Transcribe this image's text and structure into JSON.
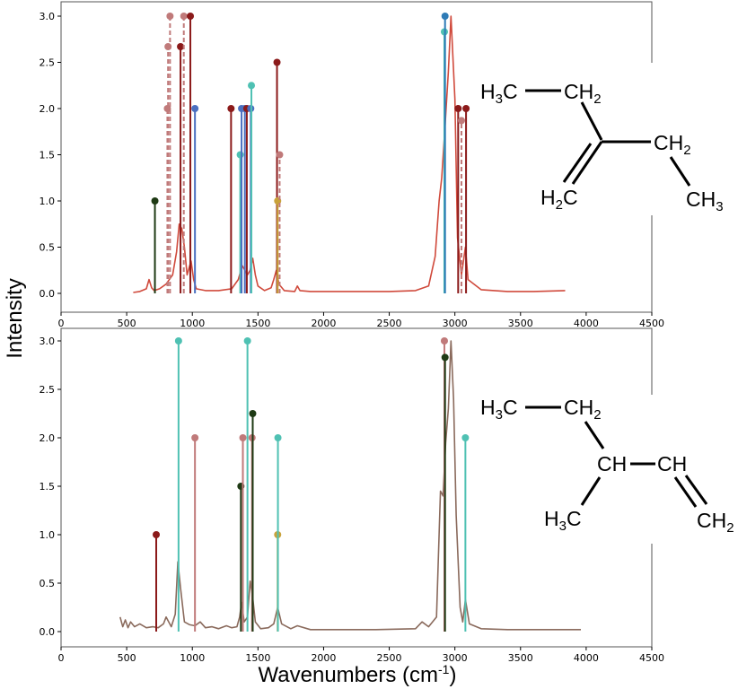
{
  "colors": {
    "spectrum_top": "#d04a3c",
    "spectrum_bottom": "#8a6a5c",
    "dark_red": "#8b1a1a",
    "pink": "#c07a7a",
    "blue": "#4a6fc0",
    "teal": "#4fc1b3",
    "dark_green": "#1e3a14",
    "gold": "#c9a23a",
    "steel_blue": "#2e7bb6"
  },
  "axes": {
    "ylabel": "Intensity",
    "xlabel_main": "Wavenumbers (cm",
    "xlabel_sup": "-1",
    "xlabel_close": ")"
  },
  "structures": {
    "top": {
      "h3c": "H3C",
      "ch2_a": "CH2",
      "ch2_b": "CH2",
      "h2c": "H2C",
      "ch3": "CH3"
    },
    "bottom": {
      "h3c": "H3C",
      "ch2": "CH2",
      "ch_a": "CH",
      "ch_b": "CH",
      "h3c_b": "H3C",
      "ch2_end": "CH2"
    }
  },
  "chart_data": [
    {
      "type": "line",
      "panel": "top",
      "xlim": [
        0,
        4500
      ],
      "ylim": [
        0,
        3.1
      ],
      "xticks": [
        0,
        500,
        1000,
        1500,
        2000,
        2500,
        3000,
        3500,
        4000,
        4500
      ],
      "yticks": [
        0.0,
        0.5,
        1.0,
        1.5,
        2.0,
        2.5,
        3.0
      ],
      "series": [
        {
          "color_key": "spectrum_top",
          "x": [
            550,
            600,
            650,
            670,
            690,
            710,
            750,
            800,
            850,
            880,
            900,
            920,
            940,
            960,
            990,
            1010,
            1030,
            1100,
            1200,
            1300,
            1350,
            1380,
            1420,
            1440,
            1460,
            1480,
            1500,
            1550,
            1600,
            1620,
            1640,
            1660,
            1700,
            1780,
            1800,
            1820,
            1900,
            2100,
            2300,
            2500,
            2700,
            2800,
            2850,
            2880,
            2900,
            2920,
            2950,
            2970,
            3000,
            3020,
            3050,
            3080,
            3100,
            3200,
            3400,
            3600,
            3840
          ],
          "y": [
            0.01,
            0.02,
            0.05,
            0.15,
            0.06,
            0.03,
            0.05,
            0.1,
            0.2,
            0.45,
            0.75,
            0.7,
            0.5,
            0.2,
            0.35,
            0.15,
            0.05,
            0.03,
            0.03,
            0.05,
            0.15,
            0.3,
            0.2,
            0.25,
            0.38,
            0.2,
            0.08,
            0.03,
            0.06,
            0.15,
            0.25,
            0.1,
            0.03,
            0.02,
            0.08,
            0.03,
            0.02,
            0.02,
            0.02,
            0.02,
            0.03,
            0.08,
            0.4,
            1.0,
            1.25,
            1.7,
            2.4,
            3.0,
            2.1,
            0.6,
            0.2,
            0.5,
            0.15,
            0.04,
            0.02,
            0.02,
            0.03
          ]
        }
      ],
      "sticks": [
        {
          "x": 715,
          "y": 1.0,
          "color_key": "dark_green",
          "dashed": false
        },
        {
          "x": 810,
          "y": 2.0,
          "color_key": "pink",
          "dashed": true
        },
        {
          "x": 815,
          "y": 2.67,
          "color_key": "pink",
          "dashed": true
        },
        {
          "x": 830,
          "y": 3.0,
          "color_key": "pink",
          "dashed": true
        },
        {
          "x": 910,
          "y": 2.67,
          "color_key": "dark_red",
          "dashed": false
        },
        {
          "x": 935,
          "y": 3.0,
          "color_key": "pink",
          "dashed": true
        },
        {
          "x": 985,
          "y": 3.0,
          "color_key": "dark_red",
          "dashed": false
        },
        {
          "x": 1020,
          "y": 2.0,
          "color_key": "blue",
          "dashed": false
        },
        {
          "x": 1295,
          "y": 2.0,
          "color_key": "dark_red",
          "dashed": false
        },
        {
          "x": 1365,
          "y": 1.5,
          "color_key": "teal",
          "dashed": false
        },
        {
          "x": 1375,
          "y": 2.0,
          "color_key": "blue",
          "dashed": false
        },
        {
          "x": 1400,
          "y": 2.0,
          "color_key": "blue",
          "dashed": false
        },
        {
          "x": 1415,
          "y": 2.0,
          "color_key": "dark_red",
          "dashed": false
        },
        {
          "x": 1445,
          "y": 2.0,
          "color_key": "blue",
          "dashed": false
        },
        {
          "x": 1450,
          "y": 2.25,
          "color_key": "teal",
          "dashed": false
        },
        {
          "x": 1645,
          "y": 2.5,
          "color_key": "dark_red",
          "dashed": false
        },
        {
          "x": 1650,
          "y": 1.0,
          "color_key": "gold",
          "dashed": false
        },
        {
          "x": 1665,
          "y": 1.5,
          "color_key": "pink",
          "dashed": true
        },
        {
          "x": 2920,
          "y": 2.83,
          "color_key": "teal",
          "dashed": false
        },
        {
          "x": 2925,
          "y": 3.0,
          "color_key": "steel_blue",
          "dashed": false
        },
        {
          "x": 3025,
          "y": 2.0,
          "color_key": "dark_red",
          "dashed": false
        },
        {
          "x": 3050,
          "y": 1.87,
          "color_key": "pink",
          "dashed": true
        },
        {
          "x": 3085,
          "y": 2.0,
          "color_key": "dark_red",
          "dashed": false
        }
      ]
    },
    {
      "type": "line",
      "panel": "bottom",
      "xlim": [
        0,
        4500
      ],
      "ylim": [
        0,
        3.1
      ],
      "xticks": [
        0,
        500,
        1000,
        1500,
        2000,
        2500,
        3000,
        3500,
        4000,
        4500
      ],
      "yticks": [
        0.0,
        0.5,
        1.0,
        1.5,
        2.0,
        2.5,
        3.0
      ],
      "series": [
        {
          "color_key": "spectrum_bottom",
          "x": [
            450,
            470,
            490,
            510,
            530,
            560,
            600,
            650,
            700,
            740,
            780,
            800,
            840,
            870,
            890,
            910,
            940,
            980,
            1020,
            1060,
            1100,
            1150,
            1200,
            1260,
            1300,
            1340,
            1360,
            1375,
            1395,
            1420,
            1440,
            1460,
            1480,
            1520,
            1580,
            1620,
            1650,
            1680,
            1750,
            1800,
            1900,
            2100,
            2400,
            2700,
            2750,
            2800,
            2860,
            2890,
            2910,
            2930,
            2950,
            2970,
            2990,
            3010,
            3040,
            3060,
            3080,
            3110,
            3200,
            3400,
            3700,
            3960
          ],
          "y": [
            0.15,
            0.05,
            0.12,
            0.04,
            0.1,
            0.05,
            0.08,
            0.04,
            0.05,
            0.04,
            0.08,
            0.15,
            0.05,
            0.18,
            0.72,
            0.45,
            0.1,
            0.07,
            0.06,
            0.1,
            0.04,
            0.05,
            0.03,
            0.06,
            0.04,
            0.05,
            0.15,
            0.3,
            0.1,
            0.15,
            0.52,
            0.35,
            0.1,
            0.03,
            0.04,
            0.08,
            0.25,
            0.08,
            0.03,
            0.06,
            0.02,
            0.02,
            0.02,
            0.03,
            0.1,
            0.05,
            0.15,
            1.45,
            1.4,
            1.95,
            2.3,
            3.0,
            2.4,
            1.2,
            0.25,
            0.1,
            0.33,
            0.08,
            0.03,
            0.02,
            0.02,
            0.02
          ]
        }
      ],
      "sticks": [
        {
          "x": 725,
          "y": 1.0,
          "color_key": "dark_red",
          "dashed": false
        },
        {
          "x": 895,
          "y": 3.0,
          "color_key": "teal",
          "dashed": false
        },
        {
          "x": 1020,
          "y": 2.0,
          "color_key": "pink",
          "dashed": false
        },
        {
          "x": 1370,
          "y": 1.5,
          "color_key": "dark_green",
          "dashed": false
        },
        {
          "x": 1385,
          "y": 2.0,
          "color_key": "pink",
          "dashed": false
        },
        {
          "x": 1420,
          "y": 3.0,
          "color_key": "teal",
          "dashed": false
        },
        {
          "x": 1455,
          "y": 2.0,
          "color_key": "pink",
          "dashed": false
        },
        {
          "x": 1460,
          "y": 2.25,
          "color_key": "dark_green",
          "dashed": false
        },
        {
          "x": 1650,
          "y": 1.0,
          "color_key": "gold",
          "dashed": false
        },
        {
          "x": 1652,
          "y": 2.0,
          "color_key": "teal",
          "dashed": false
        },
        {
          "x": 2920,
          "y": 3.0,
          "color_key": "pink",
          "dashed": false
        },
        {
          "x": 2925,
          "y": 2.83,
          "color_key": "dark_green",
          "dashed": false
        },
        {
          "x": 3080,
          "y": 2.0,
          "color_key": "teal",
          "dashed": false
        }
      ]
    }
  ]
}
